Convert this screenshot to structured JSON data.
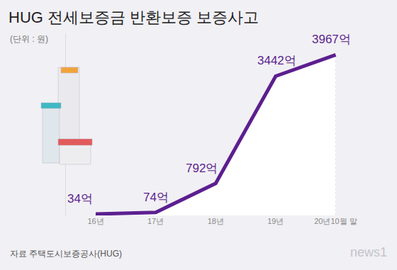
{
  "chart_data": {
    "type": "line",
    "title": "HUG 전세보증금 반환보증 보증사고",
    "subtitle": "(단위 : 원)",
    "categories": [
      "16년",
      "17년",
      "18년",
      "19년",
      "20년10월 말"
    ],
    "values": [
      34,
      74,
      792,
      3442,
      3967
    ],
    "value_labels": [
      "34억",
      "74억",
      "792억",
      "3442억",
      "3967억"
    ],
    "data_labels": true,
    "color": "#5c1f8f",
    "ylim": [
      0,
      4500
    ],
    "grid": false,
    "tick_labels": "x",
    "annotations": [
      "자료 주택도시보증공사(HUG)",
      "news1"
    ]
  }
}
